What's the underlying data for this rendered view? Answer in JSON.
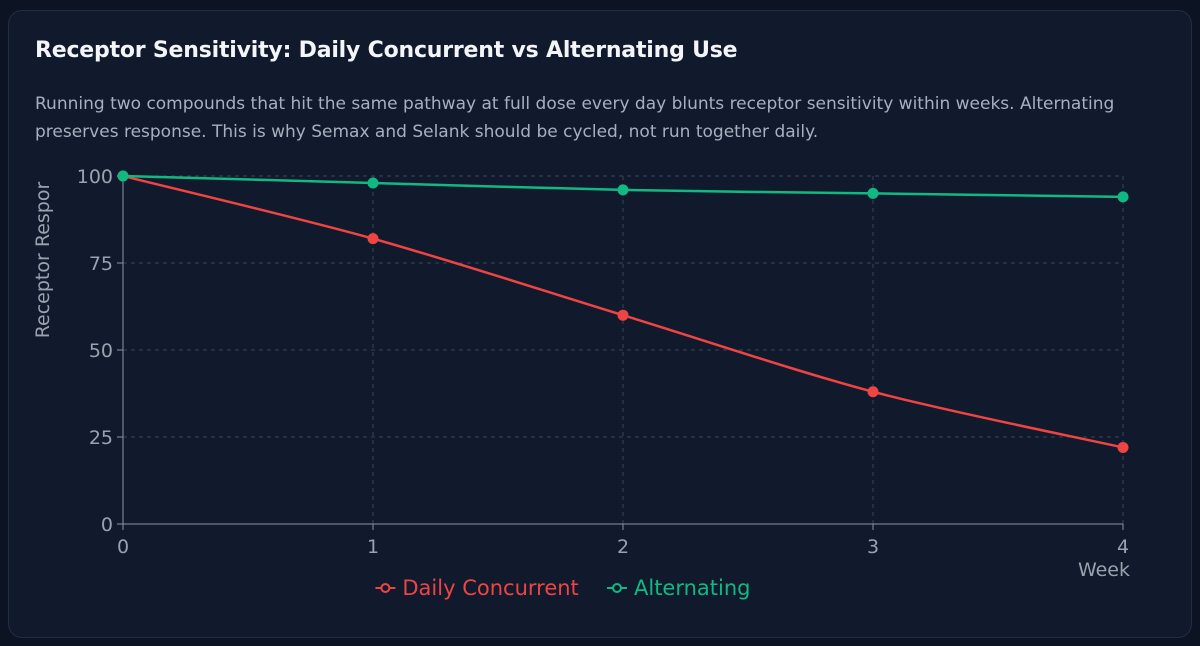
{
  "header": {
    "title": "Receptor Sensitivity: Daily Concurrent vs Alternating Use",
    "description": "Running two compounds that hit the same pathway at full dose every day blunts receptor sensitivity within weeks. Alternating preserves response. This is why Semax and Selank should be cycled, not run together daily."
  },
  "chart_data": {
    "type": "line",
    "x": [
      0,
      1,
      2,
      3,
      4
    ],
    "xlabel": "Week",
    "ylabel": "Receptor Respor",
    "xlim": [
      0,
      4
    ],
    "ylim": [
      0,
      100
    ],
    "yticks": [
      0,
      25,
      50,
      75,
      100
    ],
    "grid": true,
    "legend": "bottom-center",
    "series": [
      {
        "name": "Daily Concurrent",
        "color": "#ef4444",
        "values": [
          100,
          82,
          60,
          38,
          22
        ]
      },
      {
        "name": "Alternating",
        "color": "#10b981",
        "values": [
          100,
          98,
          96,
          95,
          94
        ]
      }
    ]
  }
}
